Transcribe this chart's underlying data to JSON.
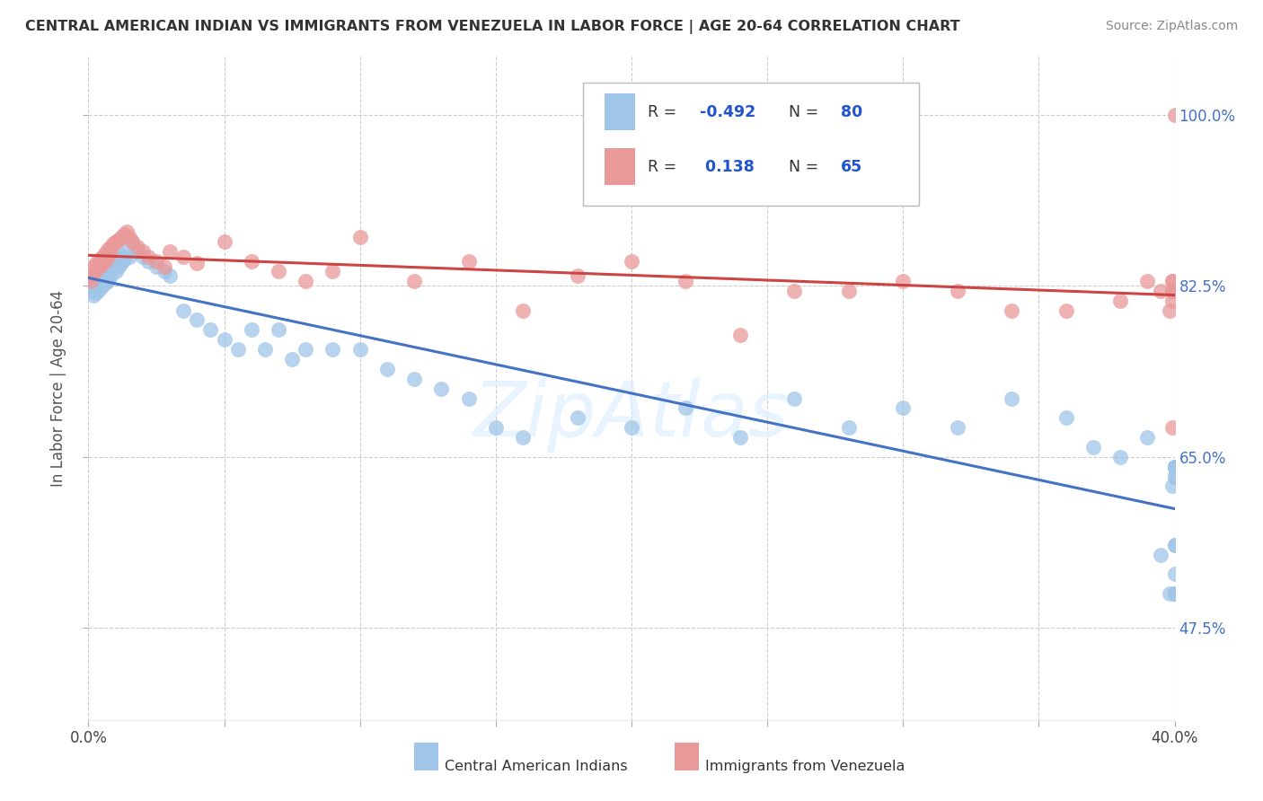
{
  "title": "CENTRAL AMERICAN INDIAN VS IMMIGRANTS FROM VENEZUELA IN LABOR FORCE | AGE 20-64 CORRELATION CHART",
  "source": "Source: ZipAtlas.com",
  "ylabel": "In Labor Force | Age 20-64",
  "yticks": [
    0.475,
    0.65,
    0.825,
    1.0
  ],
  "ytick_labels": [
    "47.5%",
    "65.0%",
    "82.5%",
    "100.0%"
  ],
  "xmin": 0.0,
  "xmax": 0.4,
  "ymin": 0.38,
  "ymax": 1.06,
  "color_blue": "#9fc5e8",
  "color_pink": "#ea9999",
  "trendline_blue": "#4472c4",
  "trendline_pink": "#cc4444",
  "blue_scatter_x": [
    0.001,
    0.001,
    0.002,
    0.002,
    0.003,
    0.003,
    0.004,
    0.004,
    0.005,
    0.005,
    0.006,
    0.006,
    0.007,
    0.007,
    0.008,
    0.008,
    0.009,
    0.01,
    0.01,
    0.011,
    0.011,
    0.012,
    0.013,
    0.014,
    0.015,
    0.016,
    0.018,
    0.02,
    0.022,
    0.025,
    0.028,
    0.03,
    0.035,
    0.04,
    0.045,
    0.05,
    0.055,
    0.06,
    0.065,
    0.07,
    0.075,
    0.08,
    0.09,
    0.1,
    0.11,
    0.12,
    0.13,
    0.14,
    0.15,
    0.16,
    0.18,
    0.2,
    0.22,
    0.24,
    0.26,
    0.28,
    0.3,
    0.32,
    0.34,
    0.36,
    0.37,
    0.38,
    0.39,
    0.395,
    0.398,
    0.399,
    0.4,
    0.4,
    0.4,
    0.4,
    0.4,
    0.4,
    0.4,
    0.4,
    0.4,
    0.4,
    0.4,
    0.4,
    0.4,
    0.4
  ],
  "blue_scatter_y": [
    0.83,
    0.82,
    0.825,
    0.815,
    0.832,
    0.818,
    0.835,
    0.822,
    0.838,
    0.825,
    0.84,
    0.828,
    0.842,
    0.83,
    0.845,
    0.835,
    0.85,
    0.855,
    0.84,
    0.858,
    0.845,
    0.848,
    0.852,
    0.86,
    0.855,
    0.87,
    0.86,
    0.855,
    0.85,
    0.845,
    0.84,
    0.835,
    0.8,
    0.79,
    0.78,
    0.77,
    0.76,
    0.78,
    0.76,
    0.78,
    0.75,
    0.76,
    0.76,
    0.76,
    0.74,
    0.73,
    0.72,
    0.71,
    0.68,
    0.67,
    0.69,
    0.68,
    0.7,
    0.67,
    0.71,
    0.68,
    0.7,
    0.68,
    0.71,
    0.69,
    0.66,
    0.65,
    0.67,
    0.55,
    0.51,
    0.62,
    0.64,
    0.64,
    0.63,
    0.64,
    0.63,
    0.64,
    0.51,
    0.51,
    0.51,
    0.53,
    0.56,
    0.56,
    0.64,
    0.64
  ],
  "pink_scatter_x": [
    0.001,
    0.001,
    0.002,
    0.002,
    0.003,
    0.003,
    0.004,
    0.004,
    0.005,
    0.005,
    0.006,
    0.006,
    0.007,
    0.007,
    0.008,
    0.008,
    0.009,
    0.01,
    0.011,
    0.012,
    0.013,
    0.014,
    0.015,
    0.016,
    0.018,
    0.02,
    0.022,
    0.025,
    0.028,
    0.03,
    0.035,
    0.04,
    0.05,
    0.06,
    0.07,
    0.08,
    0.09,
    0.1,
    0.12,
    0.14,
    0.16,
    0.18,
    0.2,
    0.22,
    0.24,
    0.26,
    0.28,
    0.3,
    0.32,
    0.34,
    0.36,
    0.38,
    0.39,
    0.395,
    0.398,
    0.399,
    0.399,
    0.399,
    0.399,
    0.399,
    0.399,
    0.399,
    0.399,
    0.4,
    0.4
  ],
  "pink_scatter_y": [
    0.835,
    0.83,
    0.845,
    0.838,
    0.848,
    0.842,
    0.852,
    0.845,
    0.855,
    0.848,
    0.858,
    0.85,
    0.862,
    0.855,
    0.865,
    0.858,
    0.868,
    0.87,
    0.872,
    0.875,
    0.878,
    0.88,
    0.875,
    0.87,
    0.865,
    0.86,
    0.855,
    0.85,
    0.845,
    0.86,
    0.855,
    0.848,
    0.87,
    0.85,
    0.84,
    0.83,
    0.84,
    0.875,
    0.83,
    0.85,
    0.8,
    0.835,
    0.85,
    0.83,
    0.775,
    0.82,
    0.82,
    0.83,
    0.82,
    0.8,
    0.8,
    0.81,
    0.83,
    0.82,
    0.8,
    0.83,
    0.82,
    0.81,
    0.82,
    0.68,
    0.82,
    0.82,
    0.83,
    0.82,
    1.0
  ]
}
